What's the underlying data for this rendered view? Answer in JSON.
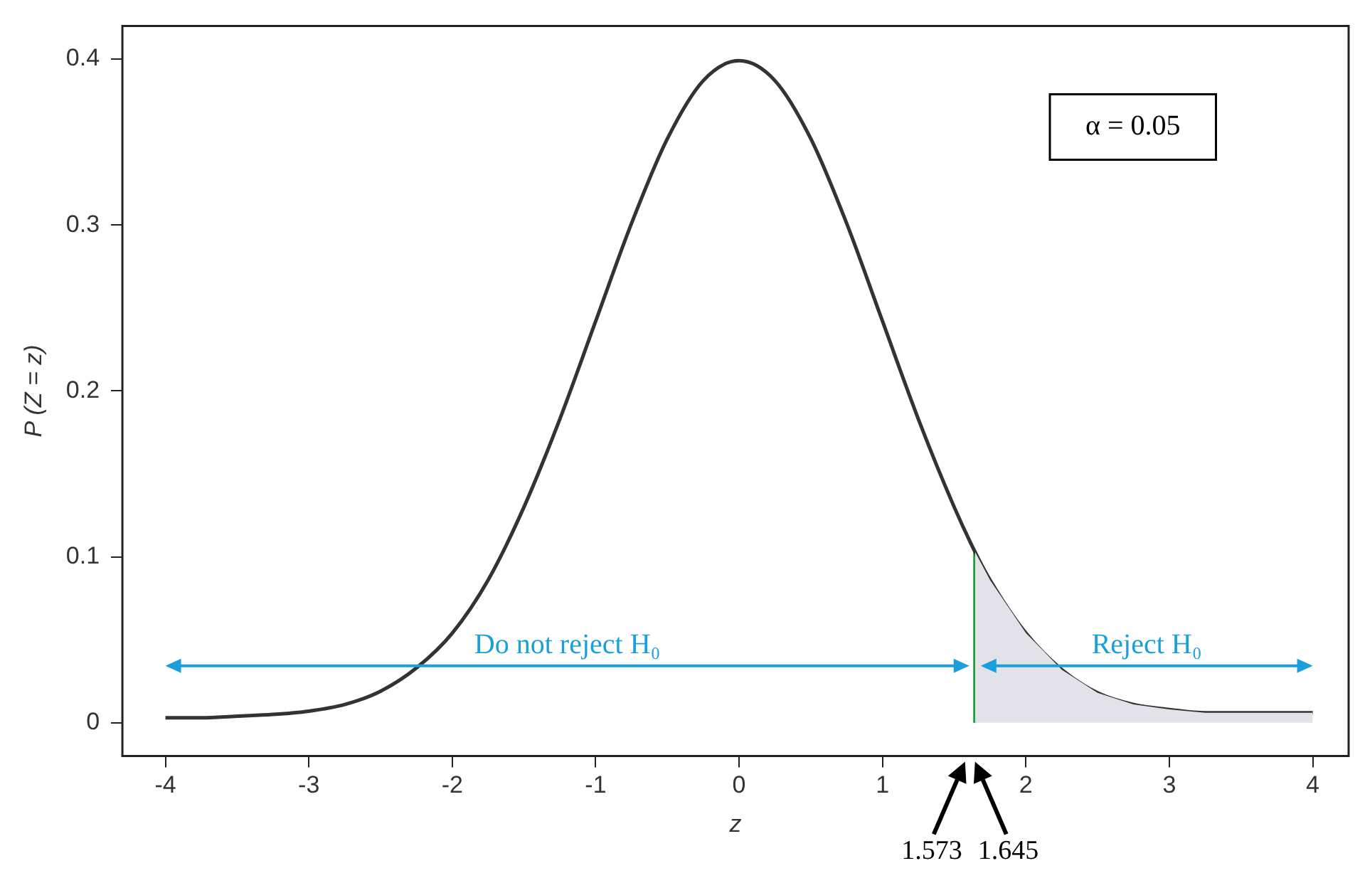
{
  "chart_data": {
    "type": "line",
    "xlabel": "z",
    "ylabel": "P (Z = z)",
    "xlim": [
      -4.3,
      4.25
    ],
    "xticks": [
      -4,
      -3,
      -2,
      -1,
      0,
      1,
      2,
      3,
      4
    ],
    "ylim": [
      -0.02,
      0.42
    ],
    "yticks": [
      0,
      0.1,
      0.2,
      0.3,
      0.4
    ],
    "grid": false,
    "legend": false,
    "marker": "none",
    "series": [
      {
        "type": "area",
        "color": "#e2e2e8",
        "x": [
          1.645,
          1.75,
          2,
          2.25,
          2.5,
          2.75,
          3,
          3.25,
          3.5,
          3.75,
          4
        ],
        "values": [
          0.103,
          0.086,
          0.054,
          0.032,
          0.018,
          0.011,
          0.008,
          0.006,
          0.006,
          0.006,
          0.006
        ]
      },
      {
        "type": "line",
        "color": "#333333",
        "x": [
          -4,
          -3.75,
          -3.5,
          -3.25,
          -3,
          -2.75,
          -2.5,
          -2.25,
          -2,
          -1.75,
          -1.5,
          -1.25,
          -1,
          -0.75,
          -0.5,
          -0.25,
          0,
          0.25,
          0.5,
          0.75,
          1,
          1.25,
          1.5,
          1.645,
          1.75,
          2,
          2.25,
          2.5,
          2.75,
          3,
          3.25,
          3.5,
          3.75,
          4
        ],
        "values": [
          0.003,
          0.003,
          0.004,
          0.005,
          0.007,
          0.011,
          0.019,
          0.033,
          0.054,
          0.086,
          0.13,
          0.183,
          0.242,
          0.301,
          0.352,
          0.387,
          0.399,
          0.387,
          0.352,
          0.301,
          0.242,
          0.183,
          0.13,
          0.103,
          0.086,
          0.054,
          0.032,
          0.018,
          0.011,
          0.008,
          0.006,
          0.006,
          0.006,
          0.006
        ]
      },
      {
        "type": "line",
        "color": "#1a9b3c",
        "x": [
          1.645,
          1.645
        ],
        "values": [
          0,
          0.103
        ]
      }
    ],
    "annotations": [
      "α = 0.05",
      "1.573",
      "1.645",
      "Do not reject H₀",
      "Reject H₀"
    ]
  }
}
